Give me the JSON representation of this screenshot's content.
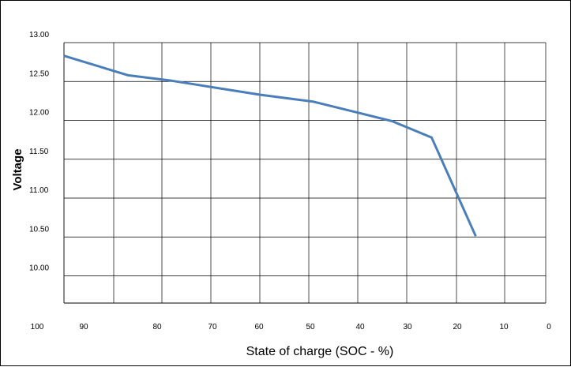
{
  "chart_data": {
    "type": "line",
    "title": "",
    "xlabel": "State of charge (SOC - %)",
    "ylabel": "Voltage",
    "x_tick_labels": [
      "100",
      "90",
      "80",
      "70",
      "60",
      "50",
      "40",
      "30",
      "20",
      "10",
      "0"
    ],
    "x_ticks": [
      100,
      90,
      80,
      70,
      60,
      50,
      40,
      30,
      20,
      10,
      0
    ],
    "y_tick_labels": [
      "10.00",
      "10.50",
      "11.00",
      "11.50",
      "12.00",
      "12.50",
      "13.00"
    ],
    "y_ticks": [
      10.0,
      10.5,
      11.0,
      11.5,
      12.0,
      12.5,
      13.0
    ],
    "xlim": [
      100,
      0
    ],
    "ylim": [
      9.65,
      13.0
    ],
    "grid": true,
    "series": [
      {
        "x": [
          95,
          87,
          78,
          73,
          60,
          49,
          40,
          33,
          25,
          16
        ],
        "y": [
          12.83,
          12.58,
          12.51,
          12.46,
          12.33,
          12.24,
          12.1,
          11.99,
          11.78,
          10.51
        ],
        "color": "#4a7ebb"
      }
    ],
    "colors": {
      "line": "#4a7ebb",
      "grid": "#000000",
      "background": "#ffffff"
    }
  }
}
